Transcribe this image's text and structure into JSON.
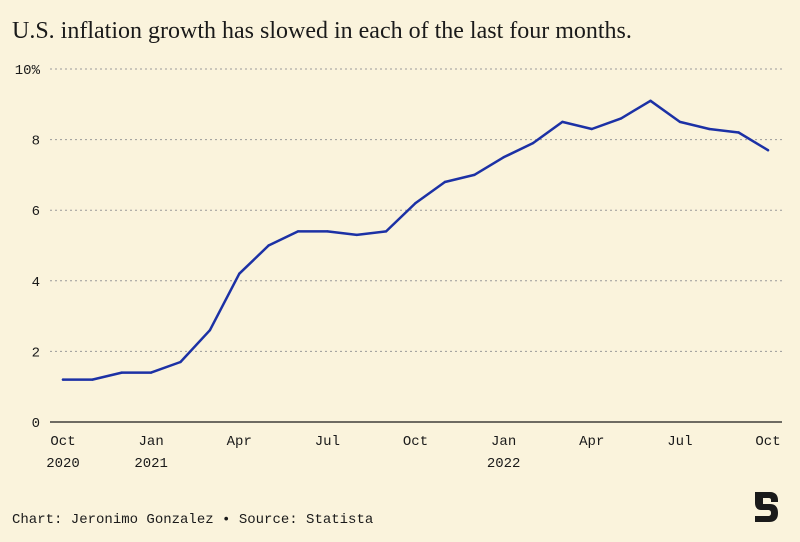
{
  "title": "U.S. inflation growth has slowed in each of the last four months.",
  "footer": "Chart: Jeronimo Gonzalez • Source: Statista",
  "colors": {
    "background": "#faf3dc",
    "line": "#1c31a5",
    "grid": "#9a9a9a",
    "text": "#1a1a1a"
  },
  "chart_data": {
    "type": "line",
    "title": "U.S. inflation growth has slowed in each of the last four months.",
    "xlabel": "",
    "ylabel": "",
    "ylim": [
      0,
      10
    ],
    "grid": "horizontal dotted",
    "y_ticks": [
      {
        "value": 10,
        "label": "10%"
      },
      {
        "value": 8,
        "label": "8"
      },
      {
        "value": 6,
        "label": "6"
      },
      {
        "value": 4,
        "label": "4"
      },
      {
        "value": 2,
        "label": "2"
      },
      {
        "value": 0,
        "label": "0"
      }
    ],
    "x_ticks": [
      {
        "date": "2020-10",
        "lines": [
          "Oct",
          "2020"
        ]
      },
      {
        "date": "2021-01",
        "lines": [
          "Jan",
          "2021"
        ]
      },
      {
        "date": "2021-04",
        "lines": [
          "Apr"
        ]
      },
      {
        "date": "2021-07",
        "lines": [
          "Jul"
        ]
      },
      {
        "date": "2021-10",
        "lines": [
          "Oct"
        ]
      },
      {
        "date": "2022-01",
        "lines": [
          "Jan",
          "2022"
        ]
      },
      {
        "date": "2022-04",
        "lines": [
          "Apr"
        ]
      },
      {
        "date": "2022-07",
        "lines": [
          "Jul"
        ]
      },
      {
        "date": "2022-10",
        "lines": [
          "Oct"
        ]
      }
    ],
    "x": [
      "2020-10",
      "2020-11",
      "2020-12",
      "2021-01",
      "2021-02",
      "2021-03",
      "2021-04",
      "2021-05",
      "2021-06",
      "2021-07",
      "2021-08",
      "2021-09",
      "2021-10",
      "2021-11",
      "2021-12",
      "2022-01",
      "2022-02",
      "2022-03",
      "2022-04",
      "2022-05",
      "2022-06",
      "2022-07",
      "2022-08",
      "2022-09",
      "2022-10"
    ],
    "values": [
      1.2,
      1.2,
      1.4,
      1.4,
      1.7,
      2.6,
      4.2,
      5.0,
      5.4,
      5.4,
      5.3,
      5.4,
      6.2,
      6.8,
      7.0,
      7.5,
      7.9,
      8.5,
      8.3,
      8.6,
      9.1,
      8.5,
      8.3,
      8.2,
      7.7
    ]
  }
}
